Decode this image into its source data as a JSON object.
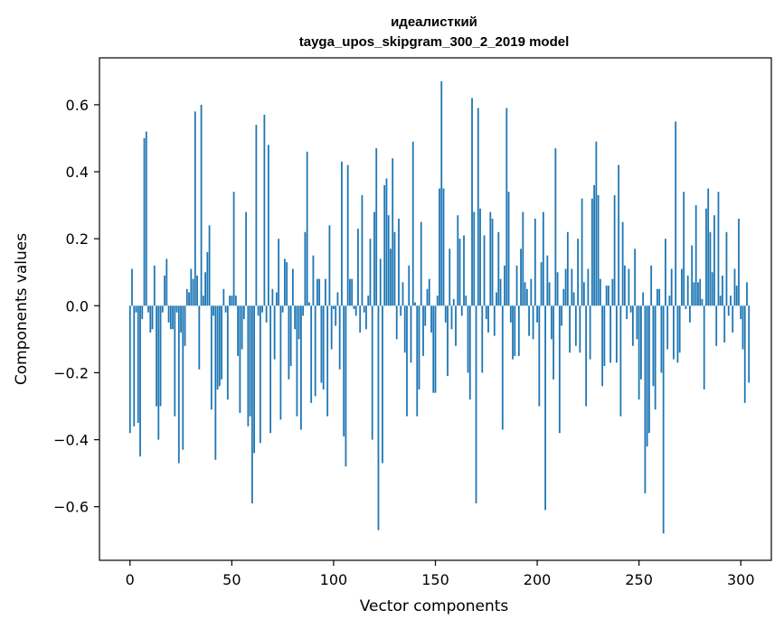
{
  "chart_data": {
    "type": "bar",
    "title_line1": "идеалисткий",
    "title_line2": "tayga_upos_skipgram_300_2_2019 model",
    "xlabel": "Vector components",
    "ylabel": "Components values",
    "xlim": [
      -15,
      315
    ],
    "ylim": [
      -0.76,
      0.74
    ],
    "xticks": [
      0,
      50,
      100,
      150,
      200,
      250,
      300
    ],
    "xtick_labels": [
      "0",
      "50",
      "100",
      "150",
      "200",
      "250",
      "300"
    ],
    "yticks": [
      -0.6,
      -0.4,
      -0.2,
      0.0,
      0.2,
      0.4,
      0.6
    ],
    "ytick_labels": [
      "−0.6",
      "−0.4",
      "−0.2",
      "0.0",
      "0.2",
      "0.4",
      "0.6"
    ],
    "bar_color": "#1f77b4",
    "values": [
      -0.38,
      0.11,
      -0.36,
      -0.02,
      -0.35,
      -0.45,
      -0.04,
      0.5,
      0.52,
      -0.02,
      -0.08,
      -0.07,
      0.12,
      -0.3,
      -0.4,
      -0.3,
      -0.02,
      0.09,
      0.14,
      -0.05,
      -0.07,
      -0.07,
      -0.33,
      -0.02,
      -0.47,
      -0.08,
      -0.43,
      -0.12,
      0.05,
      0.04,
      0.11,
      0.08,
      0.58,
      0.09,
      -0.19,
      0.6,
      0.03,
      0.1,
      0.16,
      0.24,
      -0.31,
      -0.03,
      -0.46,
      -0.25,
      -0.24,
      -0.22,
      0.05,
      -0.02,
      -0.28,
      0.03,
      0.03,
      0.34,
      0.03,
      -0.15,
      -0.32,
      -0.13,
      -0.04,
      0.28,
      -0.36,
      -0.33,
      -0.59,
      -0.44,
      0.54,
      -0.03,
      -0.41,
      -0.02,
      0.57,
      -0.05,
      0.48,
      -0.38,
      0.05,
      -0.16,
      0.04,
      0.2,
      -0.34,
      -0.02,
      0.14,
      0.13,
      -0.22,
      -0.18,
      0.11,
      -0.07,
      -0.33,
      -0.1,
      -0.37,
      -0.03,
      0.22,
      0.46,
      0.01,
      -0.29,
      0.15,
      -0.27,
      0.08,
      0.08,
      -0.23,
      -0.25,
      0.08,
      -0.33,
      0.24,
      -0.13,
      -0.01,
      -0.06,
      0.04,
      -0.19,
      0.43,
      -0.39,
      -0.48,
      0.42,
      0.08,
      0.08,
      -0.01,
      -0.03,
      0.23,
      -0.08,
      0.33,
      -0.02,
      -0.07,
      0.03,
      0.2,
      -0.4,
      0.28,
      0.47,
      -0.67,
      0.14,
      -0.47,
      0.36,
      0.38,
      0.27,
      0.17,
      0.44,
      0.22,
      -0.1,
      0.26,
      -0.03,
      0.07,
      -0.14,
      -0.33,
      0.12,
      -0.17,
      0.49,
      0.01,
      -0.33,
      -0.25,
      0.25,
      -0.15,
      -0.06,
      0.05,
      0.08,
      -0.08,
      -0.26,
      -0.26,
      0.03,
      0.35,
      0.67,
      0.35,
      -0.05,
      -0.21,
      0.17,
      -0.07,
      0.02,
      -0.12,
      0.27,
      0.2,
      -0.03,
      0.21,
      0.03,
      -0.2,
      -0.28,
      0.62,
      0.28,
      -0.59,
      0.59,
      0.29,
      -0.2,
      0.21,
      -0.04,
      -0.08,
      0.28,
      0.26,
      -0.09,
      0.04,
      0.22,
      0.08,
      -0.37,
      0.12,
      0.59,
      0.34,
      -0.05,
      -0.16,
      -0.15,
      0.12,
      -0.15,
      0.17,
      0.28,
      0.07,
      0.05,
      -0.09,
      0.08,
      -0.1,
      0.26,
      -0.05,
      -0.3,
      0.13,
      0.28,
      -0.61,
      0.15,
      0.07,
      -0.1,
      -0.22,
      0.47,
      0.1,
      -0.38,
      -0.06,
      0.05,
      0.11,
      0.22,
      -0.14,
      0.11,
      0.04,
      -0.12,
      0.2,
      -0.14,
      0.32,
      0.07,
      -0.3,
      0.11,
      -0.16,
      0.32,
      0.36,
      0.49,
      0.33,
      0.08,
      -0.24,
      -0.18,
      0.06,
      0.06,
      -0.17,
      0.08,
      0.33,
      -0.17,
      0.42,
      -0.33,
      0.25,
      0.12,
      -0.04,
      0.11,
      -0.02,
      -0.12,
      0.17,
      -0.1,
      -0.28,
      -0.22,
      0.04,
      -0.56,
      -0.42,
      -0.38,
      0.12,
      -0.24,
      -0.31,
      0.05,
      0.05,
      -0.2,
      -0.68,
      0.2,
      -0.13,
      0.03,
      0.11,
      -0.16,
      0.55,
      -0.17,
      -0.14,
      0.11,
      0.34,
      -0.01,
      0.09,
      -0.05,
      0.18,
      0.07,
      0.3,
      0.07,
      0.08,
      0.02,
      -0.25,
      0.29,
      0.35,
      0.22,
      0.1,
      0.27,
      -0.12,
      0.34,
      0.03,
      0.09,
      -0.11,
      0.22,
      -0.03,
      0.03,
      -0.08,
      0.11,
      0.06,
      0.26,
      -0.04,
      -0.13,
      -0.29,
      0.07,
      -0.23
    ]
  }
}
